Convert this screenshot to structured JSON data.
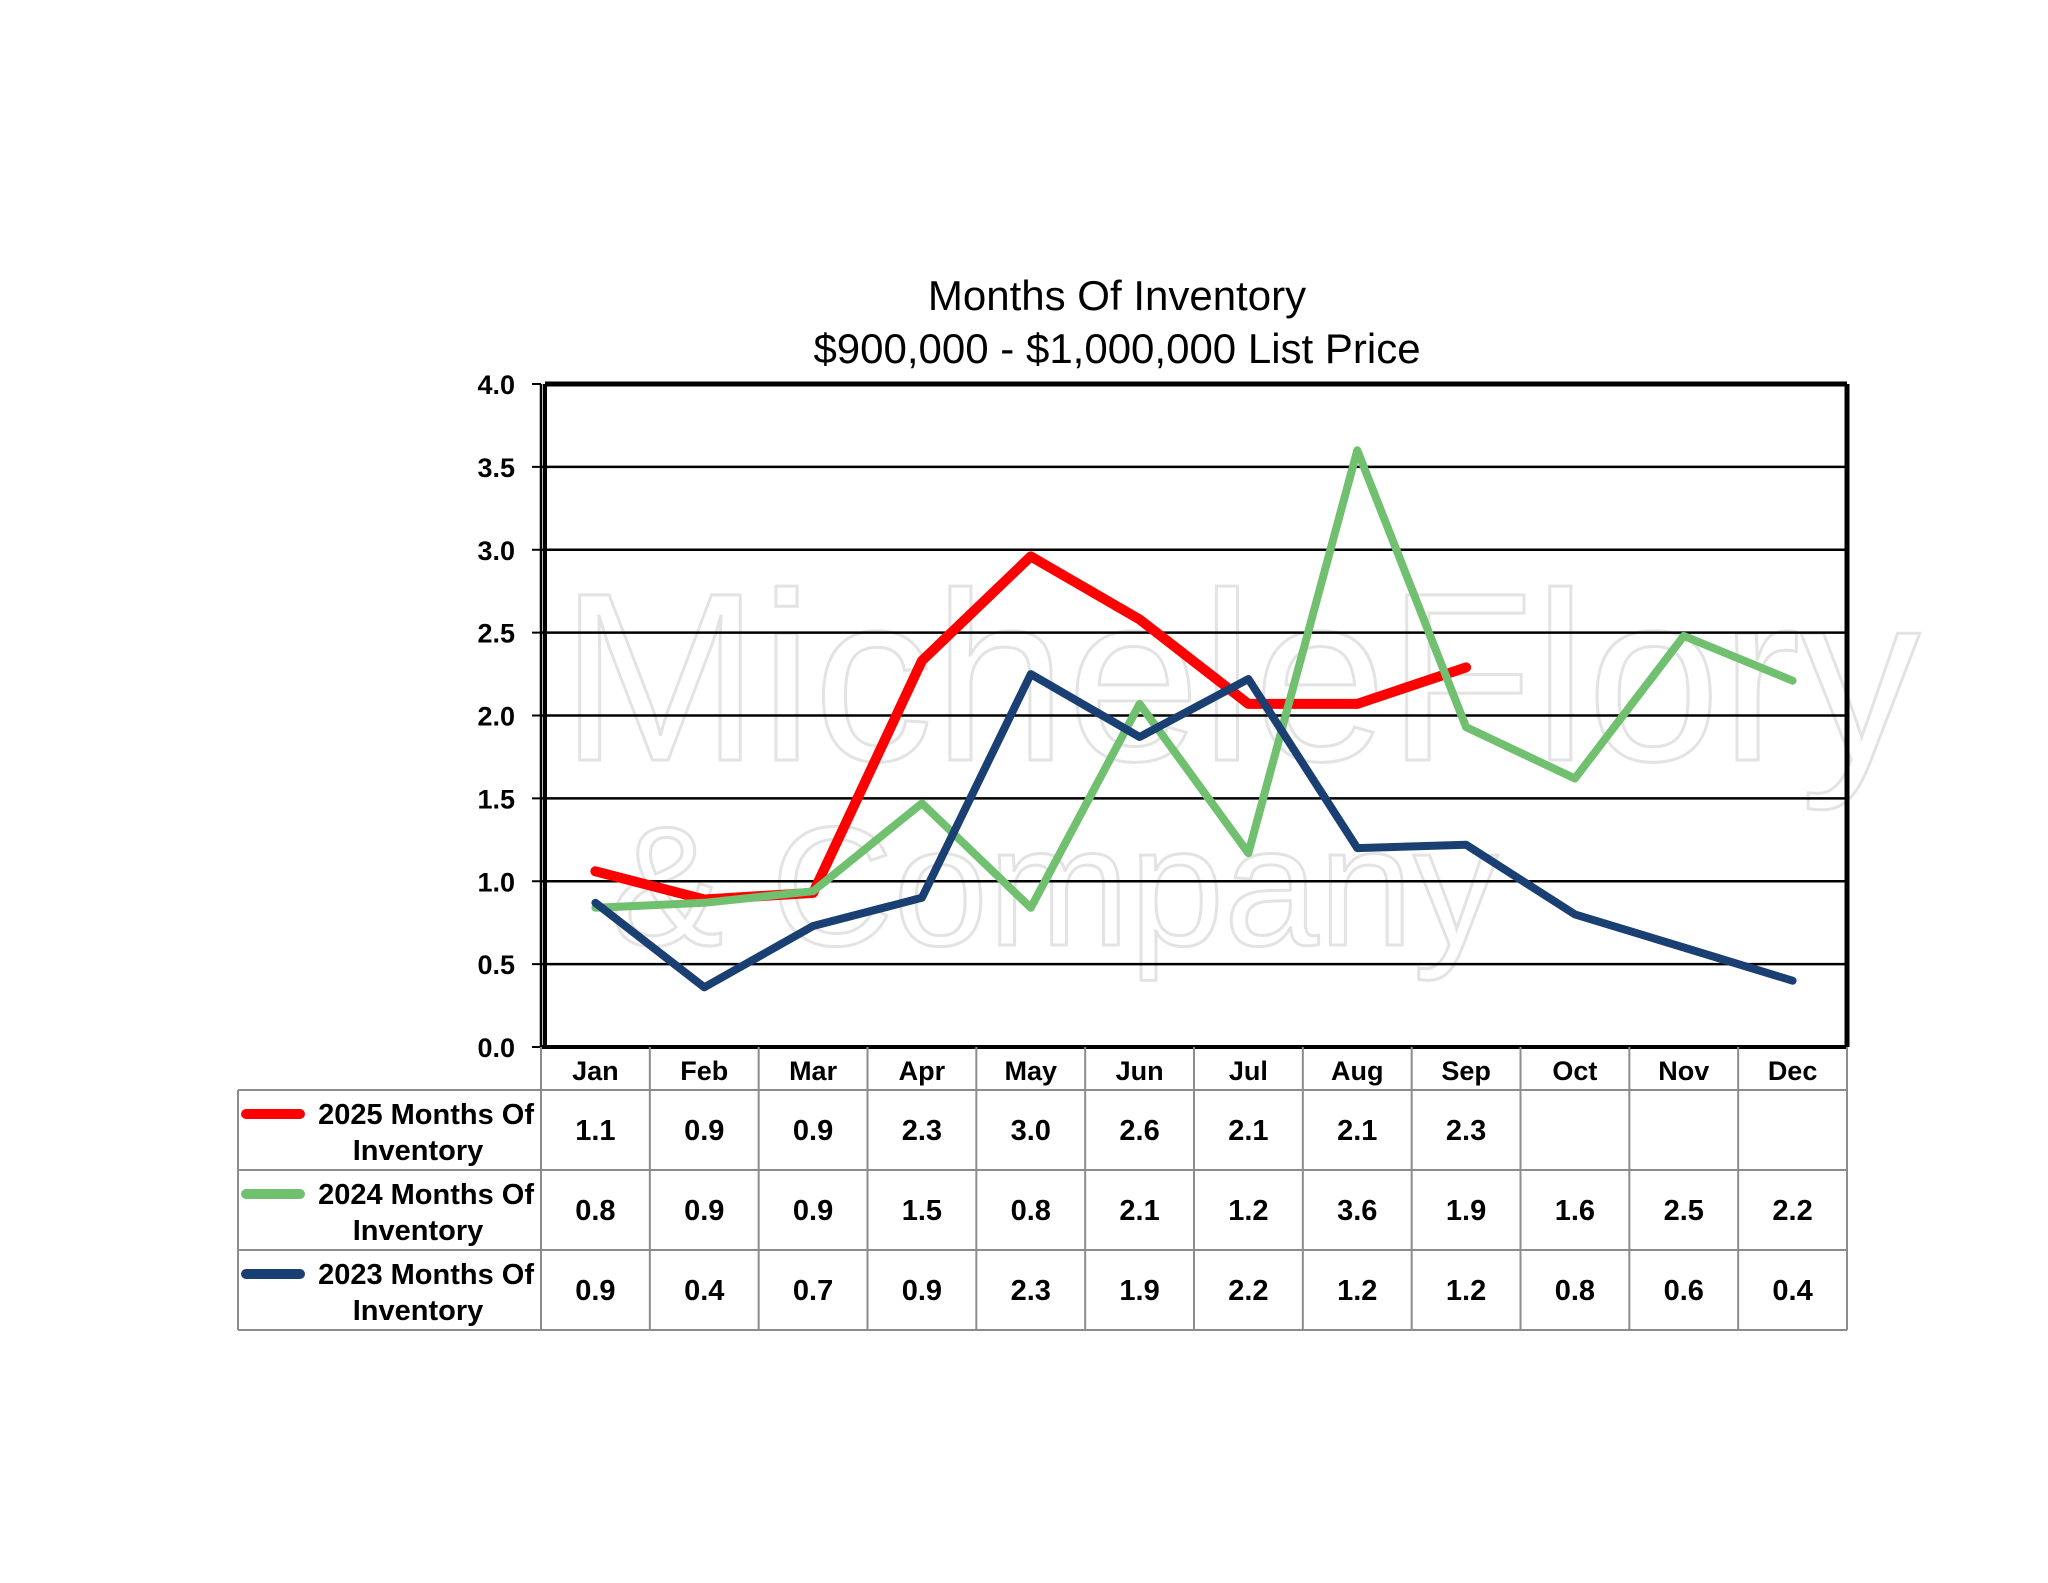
{
  "chart_data": {
    "type": "line",
    "title": "Months Of Inventory",
    "subtitle": "$900,000 - $1,000,000 List Price",
    "categories": [
      "Jan",
      "Feb",
      "Mar",
      "Apr",
      "May",
      "Jun",
      "Jul",
      "Aug",
      "Sep",
      "Oct",
      "Nov",
      "Dec"
    ],
    "ylim": [
      0,
      4
    ],
    "yticks": [
      "0.0",
      "0.5",
      "1.0",
      "1.5",
      "2.0",
      "2.5",
      "3.0",
      "3.5",
      "4.0"
    ],
    "grid": true,
    "legend_placement": "data-table-left",
    "series": [
      {
        "name": "2025 Months Of Inventory",
        "name_line1": "2025 Months Of",
        "name_line2": "Inventory",
        "color": "#ff0000",
        "values": [
          1.06,
          0.89,
          0.93,
          2.33,
          2.96,
          2.58,
          2.07,
          2.07,
          2.29,
          null,
          null,
          null
        ],
        "labels": [
          "1.1",
          "0.9",
          "0.9",
          "2.3",
          "3.0",
          "2.6",
          "2.1",
          "2.1",
          "2.3",
          "",
          "",
          ""
        ]
      },
      {
        "name": "2024 Months Of Inventory",
        "name_line1": "2024 Months Of",
        "name_line2": "Inventory",
        "color": "#70c070",
        "values": [
          0.84,
          0.87,
          0.94,
          1.47,
          0.84,
          2.07,
          1.17,
          3.6,
          1.93,
          1.62,
          2.48,
          2.21
        ],
        "labels": [
          "0.8",
          "0.9",
          "0.9",
          "1.5",
          "0.8",
          "2.1",
          "1.2",
          "3.6",
          "1.9",
          "1.6",
          "2.5",
          "2.2"
        ]
      },
      {
        "name": "2023 Months Of Inventory",
        "name_line1": "2023 Months Of",
        "name_line2": "Inventory",
        "color": "#1a3f73",
        "values": [
          0.87,
          0.36,
          0.73,
          0.9,
          2.25,
          1.87,
          2.22,
          1.2,
          1.22,
          0.8,
          0.6,
          0.4
        ],
        "labels": [
          "0.9",
          "0.4",
          "0.7",
          "0.9",
          "2.3",
          "1.9",
          "2.2",
          "1.2",
          "1.2",
          "0.8",
          "0.6",
          "0.4"
        ]
      }
    ]
  },
  "watermark": {
    "line1": "MicheleFlory",
    "line2": "& Company"
  }
}
